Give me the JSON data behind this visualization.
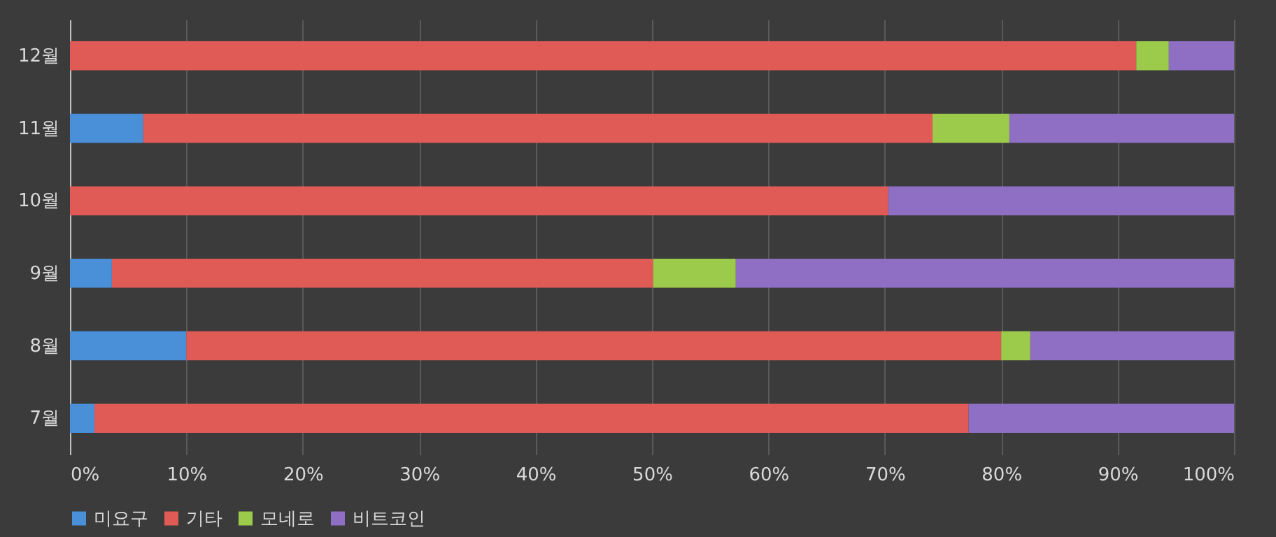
{
  "chart_data": {
    "type": "bar",
    "orientation": "horizontal",
    "stacked": true,
    "categories": [
      "12월",
      "11월",
      "10월",
      "9월",
      "8월",
      "7월"
    ],
    "series": [
      {
        "name": "미요구",
        "color": "#4a90d9",
        "values": [
          0,
          6.3,
          0,
          3.6,
          10.0,
          2.1
        ]
      },
      {
        "name": "기타",
        "color": "#e05a56",
        "values": [
          91.6,
          67.8,
          70.3,
          46.5,
          70.0,
          75.1
        ]
      },
      {
        "name": "모네로",
        "color": "#9ccb4c",
        "values": [
          2.8,
          6.6,
          0,
          7.1,
          2.5,
          0
        ]
      },
      {
        "name": "비트코인",
        "color": "#8f6fc4",
        "values": [
          5.6,
          19.3,
          29.7,
          42.8,
          17.5,
          22.8
        ]
      }
    ],
    "xlim": [
      0,
      100
    ],
    "xticks": [
      {
        "value": 0,
        "label": "0%"
      },
      {
        "value": 10,
        "label": "10%"
      },
      {
        "value": 20,
        "label": "20%"
      },
      {
        "value": 30,
        "label": "30%"
      },
      {
        "value": 40,
        "label": "40%"
      },
      {
        "value": 50,
        "label": "50%"
      },
      {
        "value": 60,
        "label": "60%"
      },
      {
        "value": 70,
        "label": "70%"
      },
      {
        "value": 80,
        "label": "80%"
      },
      {
        "value": 90,
        "label": "90%"
      },
      {
        "value": 100,
        "label": "100%"
      }
    ],
    "grid": "x",
    "legend": "bottom"
  }
}
